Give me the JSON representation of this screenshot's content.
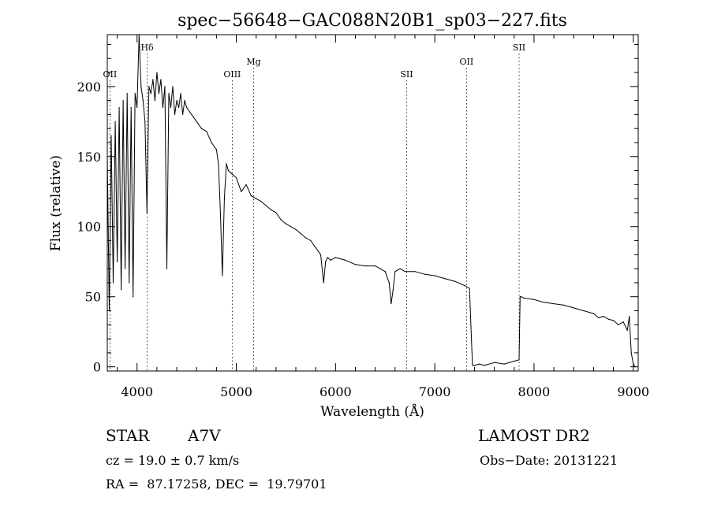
{
  "chart_data": {
    "type": "line",
    "title": "spec−56648−GAC088N20B1_sp03−227.fits",
    "xlabel": "Wavelength (Å)",
    "ylabel": "Flux (relative)",
    "xlim": [
      3700,
      9050
    ],
    "ylim": [
      -3,
      237
    ],
    "x_ticks": [
      4000,
      5000,
      6000,
      7000,
      8000,
      9000
    ],
    "y_ticks": [
      0,
      50,
      100,
      150,
      200
    ],
    "x_tick_labels": [
      "4000",
      "5000",
      "6000",
      "7000",
      "8000",
      "9000"
    ],
    "y_tick_labels": [
      "0",
      "50",
      "100",
      "150",
      "200"
    ],
    "grid": false,
    "line_color": "#000000",
    "series": [
      {
        "x": [
          3700,
          3720,
          3740,
          3760,
          3780,
          3800,
          3820,
          3840,
          3860,
          3880,
          3900,
          3920,
          3940,
          3960,
          3980,
          4000,
          4020,
          4040,
          4060,
          4080,
          4100,
          4120,
          4140,
          4160,
          4180,
          4200,
          4220,
          4240,
          4260,
          4280,
          4300,
          4320,
          4340,
          4360,
          4380,
          4400,
          4420,
          4440,
          4460,
          4480,
          4500,
          4550,
          4600,
          4650,
          4700,
          4750,
          4800,
          4820,
          4840,
          4860,
          4880,
          4900,
          4920,
          4950,
          5000,
          5050,
          5100,
          5150,
          5200,
          5250,
          5300,
          5350,
          5400,
          5450,
          5500,
          5550,
          5600,
          5650,
          5700,
          5750,
          5800,
          5850,
          5880,
          5900,
          5920,
          5950,
          6000,
          6100,
          6200,
          6300,
          6400,
          6450,
          6500,
          6540,
          6560,
          6580,
          6600,
          6650,
          6700,
          6800,
          6900,
          7000,
          7100,
          7200,
          7300,
          7350,
          7380,
          7400,
          7450,
          7500,
          7600,
          7700,
          7800,
          7850,
          7860,
          7870,
          7900,
          8000,
          8100,
          8200,
          8300,
          8400,
          8500,
          8600,
          8650,
          8700,
          8750,
          8800,
          8850,
          8900,
          8940,
          8960,
          8980,
          9000,
          9020
        ],
        "y": [
          150,
          40,
          165,
          60,
          175,
          75,
          185,
          55,
          190,
          70,
          195,
          60,
          185,
          50,
          195,
          185,
          240,
          200,
          190,
          175,
          110,
          200,
          195,
          205,
          190,
          210,
          195,
          205,
          185,
          200,
          70,
          195,
          185,
          200,
          180,
          190,
          185,
          195,
          180,
          190,
          185,
          180,
          175,
          170,
          168,
          160,
          155,
          145,
          110,
          65,
          120,
          145,
          140,
          138,
          135,
          125,
          130,
          122,
          120,
          118,
          115,
          112,
          110,
          105,
          102,
          100,
          98,
          95,
          92,
          90,
          85,
          80,
          60,
          75,
          78,
          76,
          78,
          76,
          73,
          72,
          72,
          70,
          68,
          60,
          45,
          55,
          68,
          70,
          68,
          68,
          66,
          65,
          63,
          61,
          58,
          56,
          1,
          1,
          2,
          1,
          3,
          2,
          4,
          5,
          50,
          50,
          49,
          48,
          46,
          45,
          44,
          42,
          40,
          38,
          35,
          36,
          34,
          33,
          30,
          32,
          26,
          36,
          10,
          2,
          0
        ]
      }
    ],
    "annotations": [
      {
        "label": "OII",
        "x": 3727
      },
      {
        "label": "Hδ",
        "x": 4102
      },
      {
        "label": "OIII",
        "x": 4959
      },
      {
        "label": "Mg",
        "x": 5175
      },
      {
        "label": "SII",
        "x": 6717
      },
      {
        "label": "OII",
        "x": 7320
      },
      {
        "label": "SII",
        "x": 7850
      }
    ]
  },
  "info": {
    "object_class": "STAR",
    "subclass": "A7V",
    "survey": "LAMOST DR2",
    "cz": "cz = 19.0 ± 0.7 km/s",
    "obs_date": "Obs−Date: 20131221",
    "coords": "RA =  87.17258, DEC =  19.79701"
  }
}
